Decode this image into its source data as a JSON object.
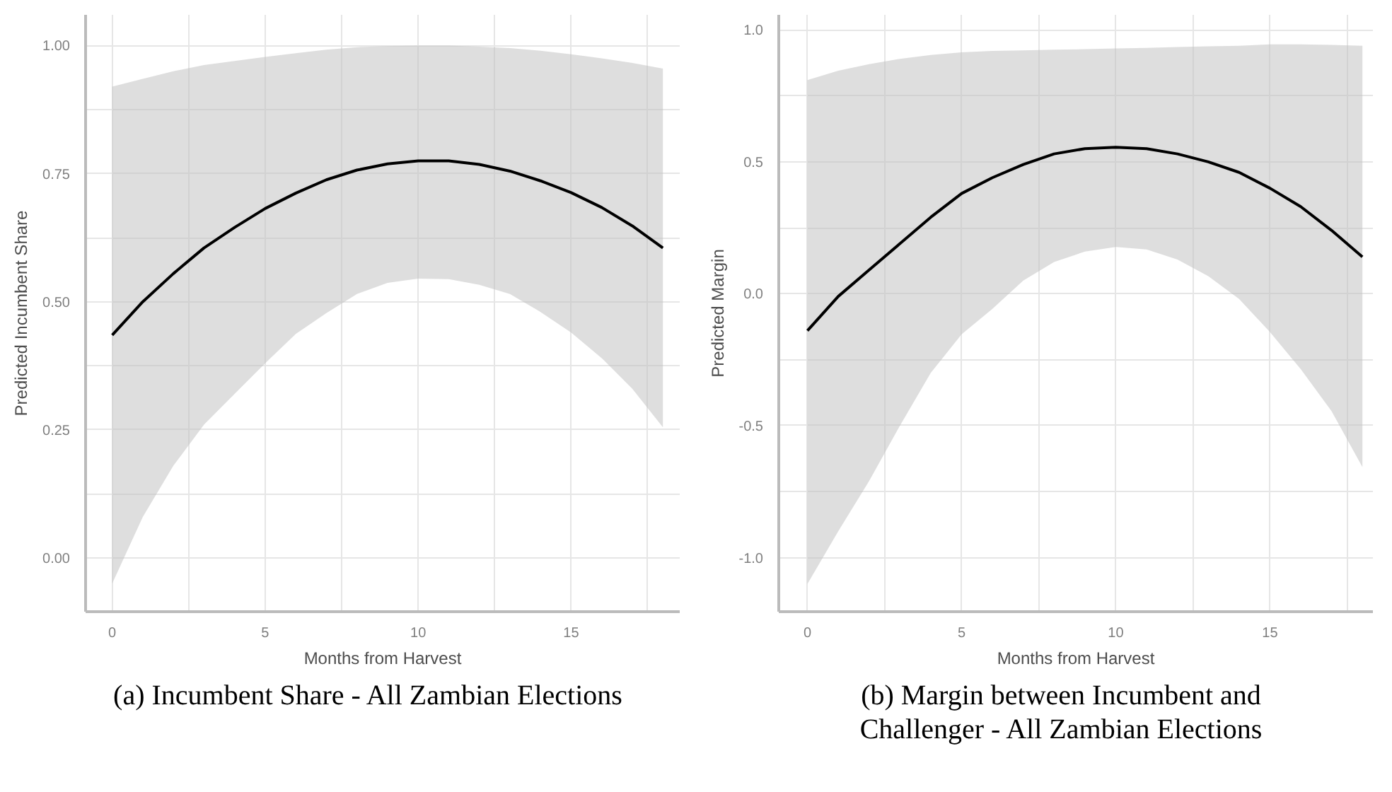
{
  "chart_data": [
    {
      "type": "line",
      "xlabel": "Months from Harvest",
      "ylabel": "Predicted Incumbent Share",
      "annotations": [
        "(a) Incumbent Share - All Zambian Elections"
      ],
      "x": [
        0,
        1,
        2,
        3,
        4,
        5,
        6,
        7,
        8,
        9,
        10,
        11,
        12,
        13,
        14,
        15,
        16,
        17,
        18
      ],
      "series": [
        {
          "color": "#000000",
          "values": [
            0.435,
            0.5,
            0.555,
            0.605,
            0.645,
            0.682,
            0.712,
            0.738,
            0.757,
            0.769,
            0.775,
            0.775,
            0.768,
            0.755,
            0.736,
            0.713,
            0.684,
            0.648,
            0.605
          ],
          "lower": [
            -0.05,
            0.08,
            0.18,
            0.26,
            0.32,
            0.38,
            0.437,
            0.478,
            0.515,
            0.537,
            0.545,
            0.544,
            0.533,
            0.515,
            0.48,
            0.44,
            0.39,
            0.33,
            0.255
          ],
          "upper": [
            0.92,
            0.935,
            0.95,
            0.962,
            0.97,
            0.978,
            0.985,
            0.992,
            0.997,
            0.999,
            1.0,
            1.0,
            0.998,
            0.995,
            0.99,
            0.983,
            0.975,
            0.966,
            0.955
          ]
        }
      ],
      "xlim": [
        -0.87,
        18.55
      ],
      "ylim": [
        -0.105,
        1.06
      ],
      "xticks": [
        0,
        {
          "value": 2.5,
          "label": null
        },
        5,
        {
          "value": 7.5,
          "label": null
        },
        10,
        {
          "value": 12.5,
          "label": null
        },
        15,
        {
          "value": 17.5,
          "label": null
        }
      ],
      "yticks": [
        {
          "value": 0,
          "label": "0.00"
        },
        {
          "value": 0.125,
          "label": null
        },
        {
          "value": 0.25,
          "label": "0.25"
        },
        {
          "value": 0.375,
          "label": null
        },
        {
          "value": 0.5,
          "label": "0.50"
        },
        {
          "value": 0.625,
          "label": null
        },
        {
          "value": 0.75,
          "label": "0.75"
        },
        {
          "value": 0.875,
          "label": null
        },
        {
          "value": 1,
          "label": "1.00"
        }
      ],
      "grid": true
    },
    {
      "type": "line",
      "xlabel": "Months from Harvest",
      "ylabel": "Predicted Margin",
      "annotations": [
        "(b) Margin between Incumbent and Challenger - All Zambian Elections"
      ],
      "x": [
        0,
        1,
        2,
        3,
        4,
        5,
        6,
        7,
        8,
        9,
        10,
        11,
        12,
        13,
        14,
        15,
        16,
        17,
        18
      ],
      "series": [
        {
          "color": "#000000",
          "values": [
            -0.14,
            -0.01,
            0.09,
            0.19,
            0.29,
            0.38,
            0.44,
            0.49,
            0.53,
            0.55,
            0.555,
            0.55,
            0.53,
            0.5,
            0.46,
            0.4,
            0.33,
            0.24,
            0.14
          ],
          "lower": [
            -1.1,
            -0.9,
            -0.71,
            -0.5,
            -0.3,
            -0.154,
            -0.057,
            0.05,
            0.12,
            0.16,
            0.177,
            0.168,
            0.13,
            0.067,
            -0.02,
            -0.145,
            -0.286,
            -0.445,
            -0.657
          ],
          "upper": [
            0.81,
            0.845,
            0.87,
            0.89,
            0.905,
            0.915,
            0.92,
            0.922,
            0.925,
            0.927,
            0.93,
            0.932,
            0.935,
            0.938,
            0.94,
            0.945,
            0.945,
            0.943,
            0.94
          ]
        }
      ],
      "xlim": [
        -0.93,
        18.34
      ],
      "ylim": [
        -1.205,
        1.057
      ],
      "xticks": [
        0,
        {
          "value": 2.5,
          "label": null
        },
        5,
        {
          "value": 7.5,
          "label": null
        },
        10,
        {
          "value": 12.5,
          "label": null
        },
        15,
        {
          "value": 17.5,
          "label": null
        }
      ],
      "yticks": [
        {
          "value": -1,
          "label": "-1.0"
        },
        {
          "value": -0.75,
          "label": null
        },
        {
          "value": -0.5,
          "label": "-0.5"
        },
        {
          "value": -0.25,
          "label": null
        },
        {
          "value": 0,
          "label": "0.0"
        },
        {
          "value": 0.25,
          "label": null
        },
        {
          "value": 0.5,
          "label": "0.5"
        },
        {
          "value": 0.75,
          "label": null
        },
        {
          "value": 1,
          "label": "1.0"
        }
      ],
      "grid": true
    }
  ]
}
